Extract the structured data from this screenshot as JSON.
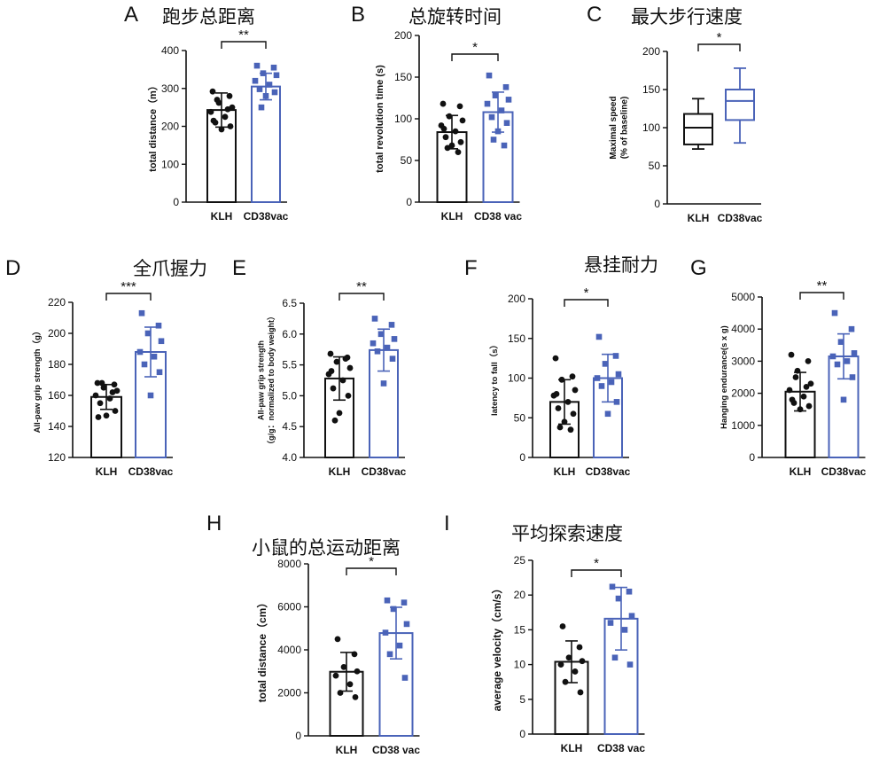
{
  "colors": {
    "klh": "#111111",
    "vac": "#4a63b8"
  },
  "panel_titles": [
    {
      "text": "跑步总距离"
    },
    {
      "text": "总旋转时间"
    },
    {
      "text": "最大步行速度"
    },
    {
      "text": "全爪握力"
    },
    {
      "text": "悬挂耐力"
    },
    {
      "text": "小鼠的总运动距离"
    },
    {
      "text": "平均探索速度"
    }
  ],
  "chart_data": [
    {
      "panel": "A",
      "type": "bar",
      "ylabel": "total distance（m）",
      "ylim": [
        0,
        400
      ],
      "yticks": [
        0,
        100,
        200,
        300,
        400
      ],
      "categories": [
        "KLH",
        "CD38vac"
      ],
      "series": [
        {
          "mean": 243,
          "sd": 45,
          "points": [
            292,
            280,
            262,
            250,
            238,
            225,
            210,
            200,
            192,
            270,
            245,
            215
          ]
        },
        {
          "mean": 305,
          "sd": 35,
          "points": [
            360,
            355,
            340,
            335,
            320,
            310,
            298,
            290,
            280,
            250
          ]
        }
      ],
      "significance": "**"
    },
    {
      "panel": "B",
      "type": "bar",
      "ylabel": "total revolution time (s)",
      "ylim": [
        0,
        200
      ],
      "yticks": [
        0,
        50,
        100,
        150,
        200
      ],
      "categories": [
        "KLH",
        "CD38 vac"
      ],
      "series": [
        {
          "mean": 84,
          "sd": 20,
          "points": [
            118,
            115,
            103,
            98,
            92,
            85,
            78,
            72,
            68,
            65,
            60,
            88
          ]
        },
        {
          "mean": 108,
          "sd": 24,
          "points": [
            152,
            138,
            128,
            123,
            118,
            110,
            102,
            95,
            85,
            75,
            68
          ]
        }
      ],
      "significance": "*"
    },
    {
      "panel": "C",
      "type": "box",
      "ylabel": "Maximal speed\n(% of baseline)",
      "ylim": [
        0,
        200
      ],
      "yticks": [
        0,
        50,
        100,
        150,
        200
      ],
      "categories": [
        "KLH",
        "CD38vac"
      ],
      "series": [
        {
          "min": 72,
          "q1": 78,
          "median": 100,
          "q3": 118,
          "max": 138
        },
        {
          "min": 80,
          "q1": 110,
          "median": 135,
          "q3": 150,
          "max": 178
        }
      ],
      "significance": "*"
    },
    {
      "panel": "D",
      "type": "bar",
      "ylabel": "All-paw grip strength（g）",
      "ylim": [
        120,
        220
      ],
      "yticks": [
        120,
        140,
        160,
        180,
        200,
        220
      ],
      "categories": [
        "KLH",
        "CD38vac"
      ],
      "series": [
        {
          "mean": 159,
          "sd": 8,
          "points": [
            168,
            167,
            165,
            163,
            160,
            158,
            155,
            150,
            147,
            168,
            162,
            146
          ]
        },
        {
          "mean": 188,
          "sd": 16,
          "points": [
            213,
            205,
            200,
            195,
            188,
            185,
            180,
            175,
            160
          ]
        }
      ],
      "significance": "***"
    },
    {
      "panel": "E",
      "type": "bar",
      "ylabel": "All-paw grip strength\n（g/g：normalized to body weight）",
      "ylim": [
        4.0,
        6.5
      ],
      "yticks": [
        4.0,
        4.5,
        5.0,
        5.5,
        6.0,
        6.5
      ],
      "categories": [
        "KLH",
        "CD38vac"
      ],
      "series": [
        {
          "mean": 5.28,
          "sd": 0.35,
          "points": [
            5.68,
            5.62,
            5.55,
            5.45,
            5.35,
            5.25,
            5.12,
            5.0,
            4.72,
            4.6,
            5.6,
            5.4
          ]
        },
        {
          "mean": 5.74,
          "sd": 0.34,
          "points": [
            6.25,
            6.15,
            6.0,
            5.92,
            5.85,
            5.78,
            5.72,
            5.6,
            5.2
          ]
        }
      ],
      "significance": "**"
    },
    {
      "panel": "F",
      "type": "bar",
      "ylabel": "latency to fall（s）",
      "ylim": [
        0,
        200
      ],
      "yticks": [
        0,
        50,
        100,
        150,
        200
      ],
      "categories": [
        "KLH",
        "CD38vac"
      ],
      "series": [
        {
          "mean": 70,
          "sd": 28,
          "points": [
            125,
            102,
            98,
            85,
            78,
            70,
            62,
            55,
            45,
            38,
            35,
            80
          ]
        },
        {
          "mean": 100,
          "sd": 30,
          "points": [
            152,
            128,
            118,
            105,
            100,
            95,
            90,
            70,
            55
          ]
        }
      ],
      "significance": "*"
    },
    {
      "panel": "G",
      "type": "bar",
      "ylabel": "Hanging endurance(s x g)",
      "ylim": [
        0,
        5000
      ],
      "yticks": [
        0,
        1000,
        2000,
        3000,
        4000,
        5000
      ],
      "categories": [
        "KLH",
        "CD38vac"
      ],
      "series": [
        {
          "mean": 2050,
          "sd": 600,
          "points": [
            3200,
            3000,
            2700,
            2300,
            2100,
            1900,
            1700,
            1600,
            1500,
            2500,
            2200,
            1800
          ]
        },
        {
          "mean": 3150,
          "sd": 700,
          "points": [
            4500,
            4000,
            3600,
            3250,
            3150,
            3000,
            2900,
            2500,
            1800
          ]
        }
      ],
      "significance": "**"
    },
    {
      "panel": "H",
      "type": "bar",
      "ylabel": "total distance（cm）",
      "ylim": [
        0,
        8000
      ],
      "yticks": [
        0,
        2000,
        4000,
        6000,
        8000
      ],
      "categories": [
        "KLH",
        "CD38 vac"
      ],
      "series": [
        {
          "mean": 2980,
          "sd": 900,
          "points": [
            4500,
            3800,
            3200,
            3000,
            2800,
            2400,
            2000,
            1800
          ]
        },
        {
          "mean": 4780,
          "sd": 1200,
          "points": [
            6300,
            6200,
            5900,
            5200,
            4800,
            4200,
            3800,
            2700
          ]
        }
      ],
      "significance": "*"
    },
    {
      "panel": "I",
      "type": "bar",
      "ylabel": "average velocity（cm/s）",
      "ylim": [
        0,
        25
      ],
      "yticks": [
        0,
        5,
        10,
        15,
        20,
        25
      ],
      "categories": [
        "KLH",
        "CD38 vac"
      ],
      "series": [
        {
          "mean": 10.4,
          "sd": 3.0,
          "points": [
            15.5,
            12.5,
            11.0,
            10.5,
            10.0,
            9.0,
            7.5,
            6.0
          ]
        },
        {
          "mean": 16.6,
          "sd": 4.5,
          "points": [
            21.2,
            20.5,
            19.5,
            17.0,
            16.0,
            15.0,
            11.0,
            10.0
          ]
        }
      ],
      "significance": "*"
    }
  ]
}
